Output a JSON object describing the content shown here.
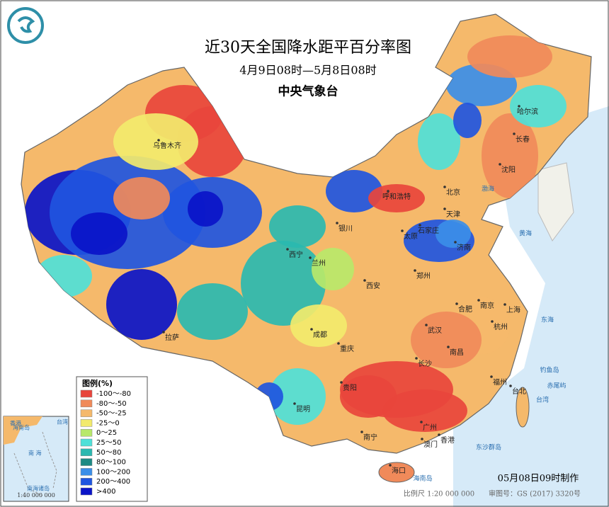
{
  "header": {
    "title": "近30天全国降水距平百分率图",
    "subtitle": "4月9日08时—5月8日08时",
    "issuer": "中央气象台"
  },
  "legend": {
    "title": "图例(%)",
    "items": [
      {
        "label": "-100～-80",
        "color": "#e8453c"
      },
      {
        "label": "-80～-50",
        "color": "#f08a5a"
      },
      {
        "label": "-50～-25",
        "color": "#f5b96b"
      },
      {
        "label": "-25～0",
        "color": "#f2ea6c"
      },
      {
        "label": "0～25",
        "color": "#b8e86a"
      },
      {
        "label": "25～50",
        "color": "#4fe0d8"
      },
      {
        "label": "50～80",
        "color": "#2ab8b0"
      },
      {
        "label": "80～100",
        "color": "#1d8a84"
      },
      {
        "label": "100～200",
        "color": "#3b8ee8"
      },
      {
        "label": "200～400",
        "color": "#1f55e0"
      },
      {
        "label": ">400",
        "color": "#0a14c8"
      }
    ]
  },
  "cities": [
    "乌鲁木齐",
    "哈尔滨",
    "长春",
    "沈阳",
    "呼和浩特",
    "北京",
    "天津",
    "石家庄",
    "太原",
    "济南",
    "银川",
    "西宁",
    "兰州",
    "郑州",
    "西安",
    "合肥",
    "南京",
    "上海",
    "杭州",
    "成都",
    "武汉",
    "拉萨",
    "重庆",
    "南昌",
    "长沙",
    "福州",
    "台北",
    "贵阳",
    "昆明",
    "南宁",
    "广州",
    "澳门",
    "香港",
    "海口"
  ],
  "places": [
    "渤海",
    "黄海",
    "东海",
    "台湾",
    "钓鱼岛",
    "赤尾屿",
    "东沙群岛",
    "海南岛"
  ],
  "inset": {
    "labels": [
      "香港",
      "台湾",
      "海南岛",
      "南 海",
      "南海诸岛"
    ],
    "scale": "1:40 000 000"
  },
  "footer": {
    "made": "05月08日09时制作",
    "scale": "比例尺 1:20 000 000",
    "approval": "审图号：GS (2017) 3320号"
  }
}
